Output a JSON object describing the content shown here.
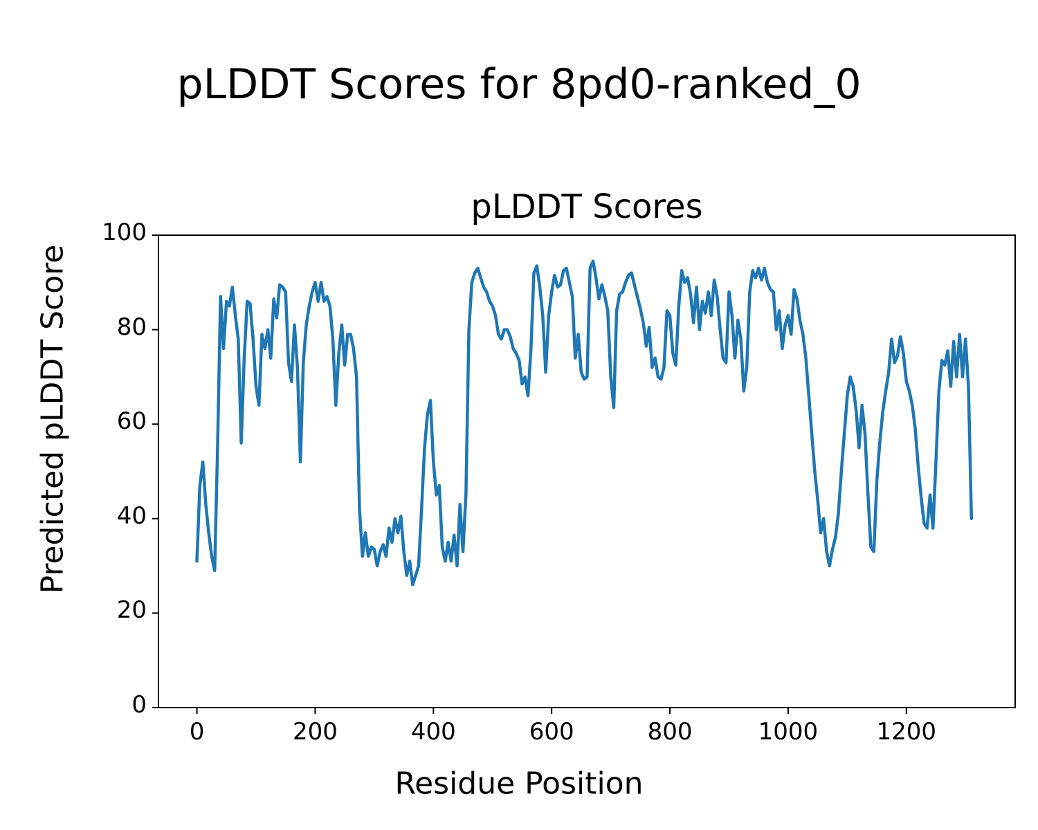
{
  "figure": {
    "suptitle": "pLDDT Scores for 8pd0-ranked_0",
    "background_color": "#ffffff",
    "text_color": "#000000"
  },
  "chart_data": {
    "type": "line",
    "title": "pLDDT Scores",
    "xlabel": "Residue Position",
    "ylabel": "Predicted pLDDT Score",
    "xlim": [
      -65,
      1384
    ],
    "ylim": [
      0,
      100
    ],
    "xticks": [
      0,
      200,
      400,
      600,
      800,
      1000,
      1200
    ],
    "yticks": [
      0,
      20,
      40,
      60,
      80,
      100
    ],
    "grid": false,
    "legend": "none",
    "line_color": "#1f77b4",
    "series": [
      {
        "name": "pLDDT",
        "x_start": 0,
        "x_step": 5,
        "values": [
          31,
          47,
          52,
          43,
          37,
          32,
          29,
          55,
          87,
          76,
          86,
          85,
          89,
          83,
          78,
          56,
          74,
          86,
          85.5,
          78,
          68,
          64,
          79,
          76,
          80,
          74,
          86.5,
          82.5,
          89.5,
          89,
          88,
          73,
          69,
          81,
          72,
          52,
          73,
          81,
          85,
          88,
          90,
          86,
          90,
          86,
          87,
          85,
          78,
          64,
          75,
          81,
          72.5,
          79,
          79,
          76,
          70,
          42,
          32,
          37,
          32,
          34,
          33.5,
          30,
          33,
          34.5,
          32,
          38,
          35,
          40,
          37,
          40.5,
          33,
          28,
          31,
          26,
          28,
          30,
          42,
          55,
          62,
          65,
          52,
          45,
          47,
          34,
          31,
          35,
          31,
          36.5,
          30,
          43,
          33,
          45,
          80,
          90,
          92,
          93,
          91,
          89,
          88,
          86,
          85,
          83,
          79,
          78,
          80,
          80,
          78.5,
          76,
          75,
          73.5,
          68.5,
          70,
          66,
          76,
          92,
          93.5,
          89,
          83,
          71,
          83,
          88,
          91.5,
          89,
          89.5,
          92.5,
          93,
          90,
          87,
          74,
          79,
          71,
          69.5,
          70,
          93,
          94.5,
          91,
          86.5,
          89.5,
          87,
          84,
          70,
          63.5,
          84,
          87.5,
          88,
          90,
          91.5,
          92,
          89.5,
          87,
          84.5,
          81.5,
          76.5,
          80.5,
          72,
          74,
          70,
          69.5,
          72,
          84,
          83,
          75,
          72.5,
          85,
          92.5,
          90,
          91,
          87.5,
          81.5,
          89,
          80,
          86,
          83.5,
          88,
          83,
          90.5,
          87,
          80,
          74,
          73,
          88,
          83,
          74,
          82,
          78,
          67,
          72,
          88,
          92.5,
          91,
          93,
          90.5,
          93,
          90,
          88.5,
          88,
          80,
          84,
          76,
          81,
          83,
          79,
          88.5,
          86.5,
          82,
          79,
          74,
          66,
          58,
          50,
          44,
          37,
          40,
          33,
          30,
          33.5,
          36,
          41,
          50,
          58,
          66,
          70,
          68,
          63,
          55,
          64,
          58,
          45,
          34,
          33,
          48,
          56,
          62.5,
          67,
          71,
          78,
          73,
          74.5,
          78.5,
          75,
          69,
          67,
          64,
          59,
          51,
          44.5,
          39,
          38,
          45,
          38,
          52,
          67,
          73.5,
          72.5,
          75.5,
          68,
          77.5,
          70,
          79,
          70,
          78,
          68,
          40
        ]
      }
    ]
  }
}
